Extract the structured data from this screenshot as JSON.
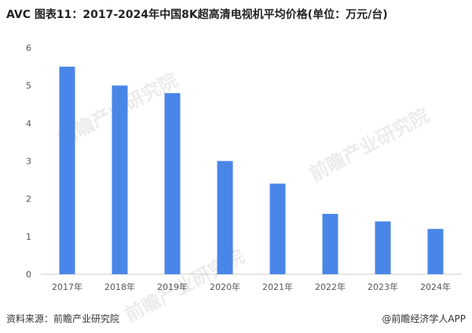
{
  "title": "AVC 图表11：2017-2024年中国8K超高清电视机平均价格(单位：万元/台)",
  "source_text": "资料来源：前瞻产业研究院",
  "brand_text": "@前瞻经济学人APP",
  "watermark_text": "前瞻产业研究院",
  "colors": {
    "bar": "#4a86e8",
    "axis": "#cccccc",
    "text": "#555555"
  },
  "chart_data": {
    "type": "bar",
    "categories": [
      "2017年",
      "2018年",
      "2019年",
      "2020年",
      "2021年",
      "2022年",
      "2023年",
      "2024年"
    ],
    "values": [
      5.5,
      5.0,
      4.8,
      3.0,
      2.4,
      1.6,
      1.4,
      1.2
    ],
    "ylim": [
      0,
      6
    ],
    "yticks": [
      0,
      1,
      2,
      3,
      4,
      5,
      6
    ],
    "grid": false
  }
}
